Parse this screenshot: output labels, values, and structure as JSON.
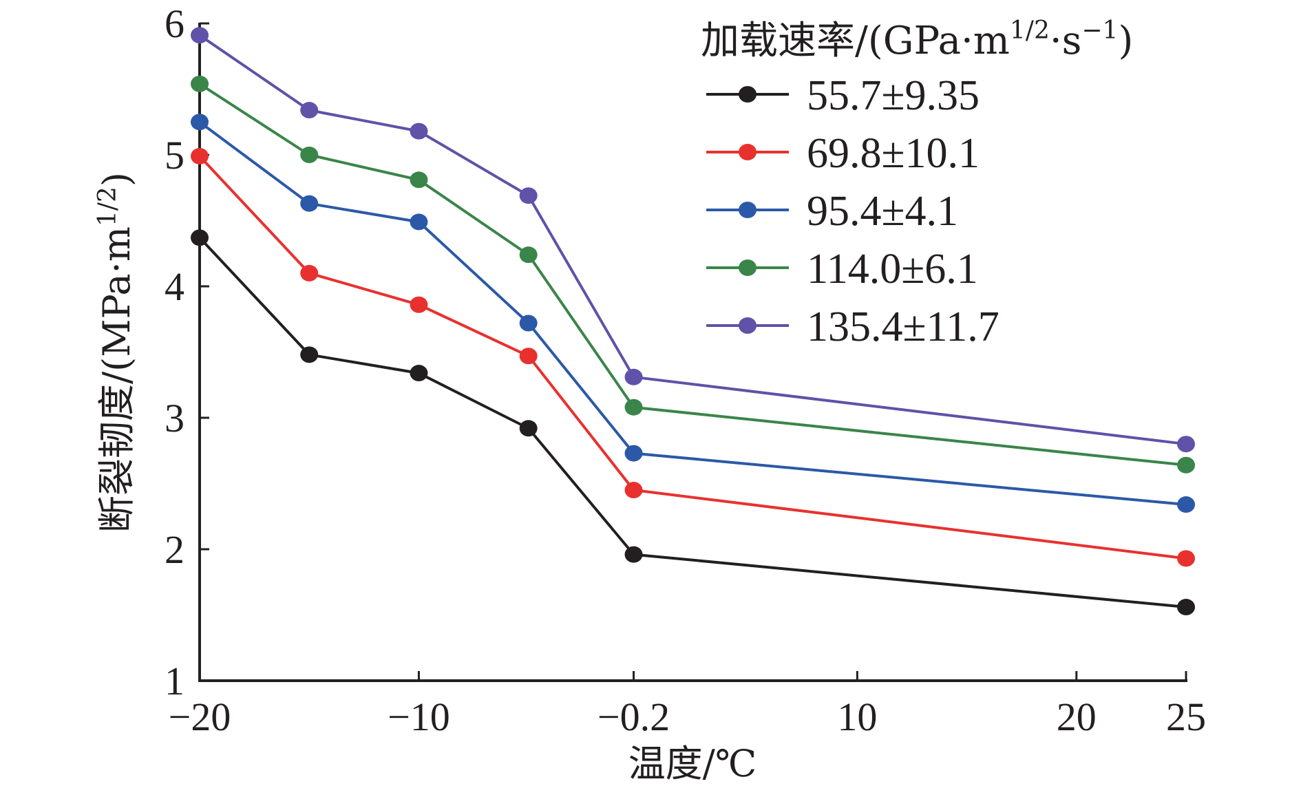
{
  "chart_data": {
    "type": "line",
    "title": "",
    "xlabel": "温度/℃",
    "ylabel": "断裂韧度/(MPa·m^1/2)",
    "ylabel_parts": {
      "main": "断裂韧度/(MPa·m",
      "sup": "1/2",
      "close": ")"
    },
    "xlim": [
      -20,
      25
    ],
    "ylim": [
      1,
      6
    ],
    "x_ticks": [
      -20,
      -10,
      -0.2,
      10,
      20,
      25
    ],
    "x_tick_labels": [
      "−20",
      "−10",
      "−0.2",
      "10",
      "20",
      "25"
    ],
    "y_ticks": [
      1,
      2,
      3,
      4,
      5,
      6
    ],
    "y_tick_labels": [
      "1",
      "2",
      "3",
      "4",
      "5",
      "6"
    ],
    "grid": false,
    "legend": {
      "placement": "top-right",
      "title": "加载速率/(GPa·m^1/2·s^-1)",
      "title_parts": {
        "main": "加载速率/(GPa·m",
        "sup1": "1/2",
        "mid": "·s",
        "sup2": "−1",
        "close": ")"
      }
    },
    "x": [
      -20,
      -15,
      -10,
      -5,
      -0.2,
      25
    ],
    "series": [
      {
        "name": "55.7±9.35",
        "color": "#231f20",
        "values": [
          4.37,
          3.48,
          3.34,
          2.92,
          1.96,
          1.56
        ]
      },
      {
        "name": "69.8±10.1",
        "color": "#e8312f",
        "values": [
          4.99,
          4.1,
          3.86,
          3.47,
          2.45,
          1.93
        ]
      },
      {
        "name": "95.4±4.1",
        "color": "#2b59a8",
        "values": [
          5.25,
          4.63,
          4.49,
          3.72,
          2.73,
          2.34
        ]
      },
      {
        "name": "114.0±6.1",
        "color": "#3a8549",
        "values": [
          5.54,
          5.0,
          4.81,
          4.24,
          3.08,
          2.64
        ]
      },
      {
        "name": "135.4±11.7",
        "color": "#5f52a8",
        "values": [
          5.91,
          5.34,
          5.18,
          4.69,
          3.31,
          2.8
        ]
      }
    ]
  }
}
